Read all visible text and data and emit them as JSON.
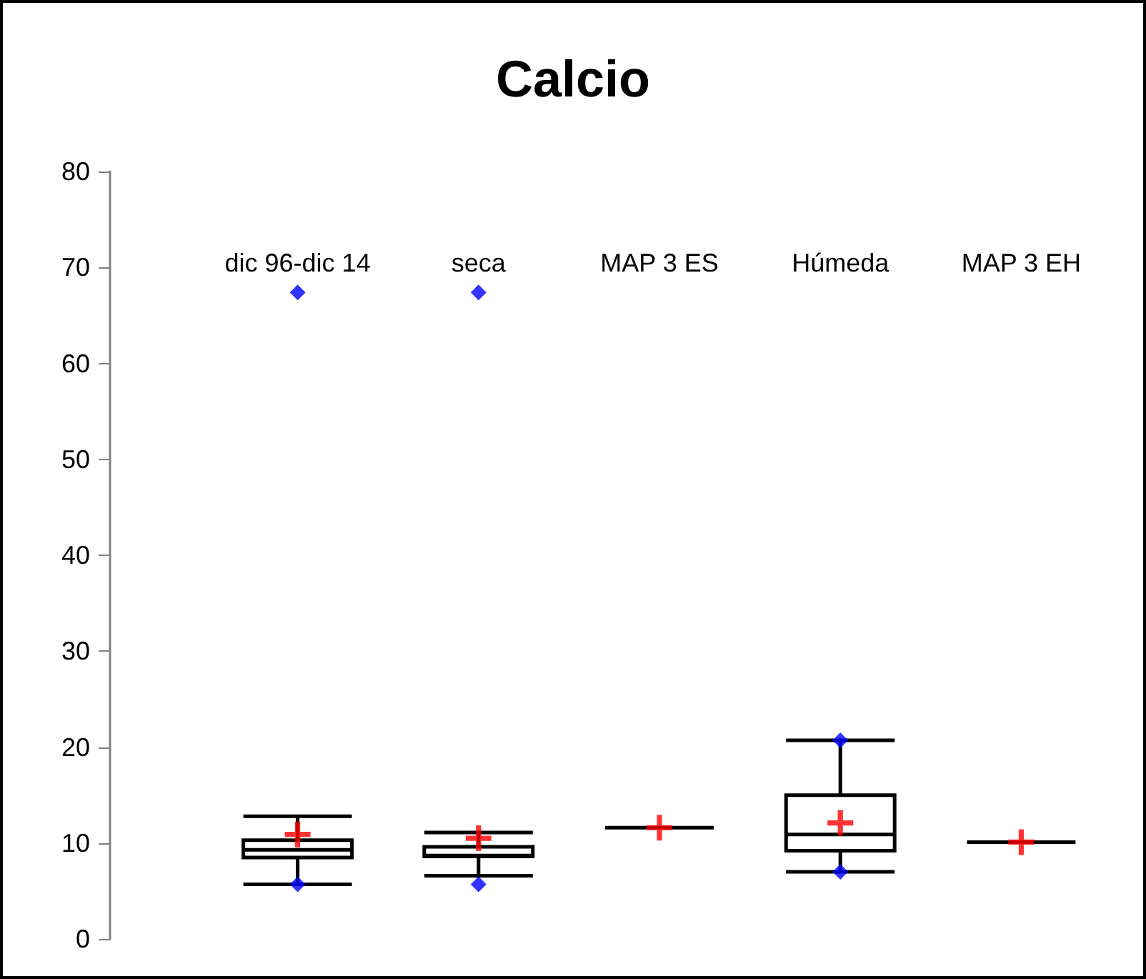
{
  "chart_data": {
    "type": "box",
    "title": "Calcio",
    "categories": [
      "dic 96-dic 14",
      "seca",
      "MAP 3 ES",
      "Húmeda",
      "MAP 3 EH"
    ],
    "boxes": [
      {
        "low": 5.7,
        "q1": 8.5,
        "median": 9.3,
        "q3": 10.3,
        "high": 12.8,
        "mean": 10.9,
        "outliers": [
          5.7,
          67.4
        ]
      },
      {
        "low": 6.6,
        "q1": 8.6,
        "median": 8.7,
        "q3": 9.6,
        "high": 11.1,
        "mean": 10.5,
        "outliers": [
          5.7,
          67.4
        ]
      },
      {
        "low": 11.6,
        "q1": 11.6,
        "median": 11.6,
        "q3": 11.6,
        "high": 11.6,
        "mean": 11.6
      },
      {
        "low": 7.0,
        "q1": 9.2,
        "median": 10.9,
        "q3": 15.0,
        "high": 20.7,
        "mean": 12.1,
        "outliers": [
          7.0,
          20.7
        ]
      },
      {
        "low": 10.1,
        "q1": 10.1,
        "median": 10.1,
        "q3": 10.1,
        "high": 10.1,
        "mean": 10.1
      }
    ],
    "ylim": [
      0,
      80
    ],
    "yticks": [
      0,
      10,
      20,
      30,
      40,
      50,
      60,
      70,
      80
    ],
    "grid": false,
    "legend": false
  }
}
